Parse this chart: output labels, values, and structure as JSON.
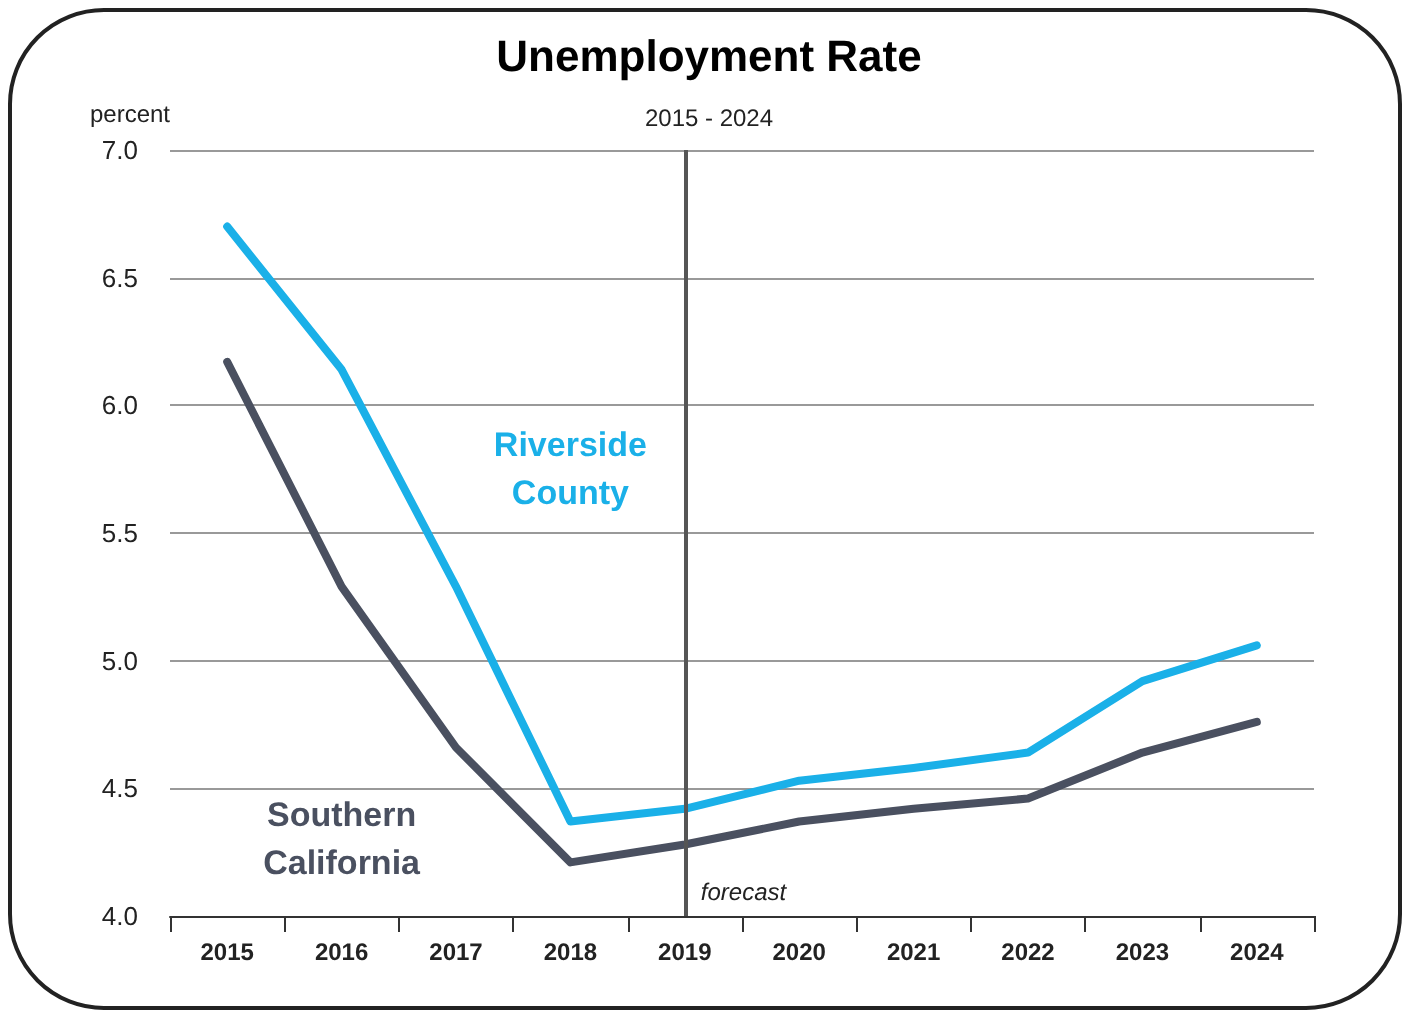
{
  "chart_data": {
    "type": "line",
    "title": "Unemployment Rate",
    "subtitle": "2015 - 2024",
    "ylabel": "percent",
    "categories": [
      "2015",
      "2016",
      "2017",
      "2018",
      "2019",
      "2020",
      "2021",
      "2022",
      "2023",
      "2024"
    ],
    "series": [
      {
        "name": "Riverside County",
        "color": "#1ab0e8",
        "values": [
          6.7,
          6.14,
          5.29,
          4.37,
          4.42,
          4.53,
          4.58,
          4.64,
          4.92,
          5.06
        ]
      },
      {
        "name": "Southern California",
        "color": "#4a5060",
        "values": [
          6.17,
          5.29,
          4.66,
          4.21,
          4.28,
          4.37,
          4.42,
          4.46,
          4.64,
          4.76
        ]
      }
    ],
    "ylim": [
      4.0,
      7.0
    ],
    "yticks": [
      {
        "value": 4.0,
        "label": "4.0"
      },
      {
        "value": 4.5,
        "label": "4.5"
      },
      {
        "value": 5.0,
        "label": "5.0"
      },
      {
        "value": 5.5,
        "label": "5.5"
      },
      {
        "value": 6.0,
        "label": "6.0"
      },
      {
        "value": 6.5,
        "label": "6.5"
      },
      {
        "value": 7.0,
        "label": "7.0"
      }
    ],
    "grid": "y",
    "legend": false,
    "marker": "none",
    "line_style": "solid",
    "ref_lines": [
      {
        "axis": "x",
        "value": "2019",
        "label": "forecast",
        "color": "#555555"
      }
    ]
  }
}
